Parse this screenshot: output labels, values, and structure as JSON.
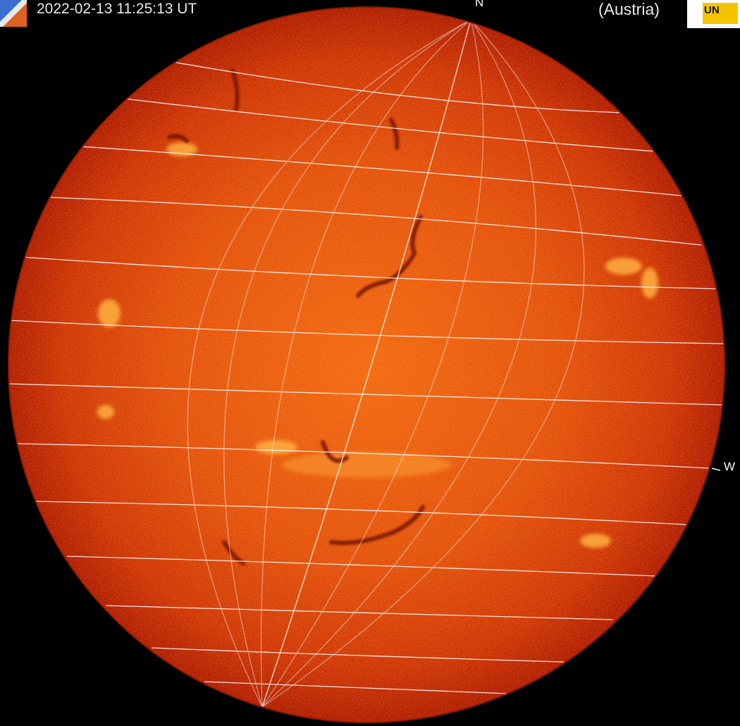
{
  "header": {
    "timestamp": "2022-02-13 11:25:13 UT",
    "location": "(Austria)"
  },
  "compass": {
    "north": "N",
    "west": "W"
  },
  "logos": {
    "left": "observatory-logo",
    "right": "university-logo",
    "right_text": "UN"
  },
  "colors": {
    "background": "#000000",
    "disk_center": "#f36a12",
    "disk_limb": "#b01d02",
    "grid": "#ffffff",
    "plage": "#ffb040",
    "filament": "#7a1204"
  }
}
